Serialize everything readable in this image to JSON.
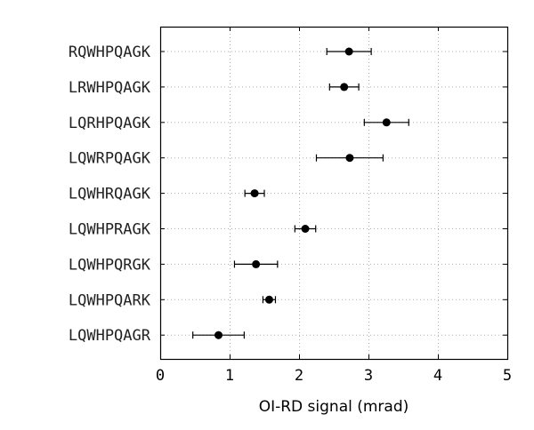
{
  "chart_data": {
    "type": "scatter",
    "orientation": "horizontal",
    "xlabel": "OI-RD signal (mrad)",
    "xlim": [
      0,
      5
    ],
    "xticks": [
      "0",
      "1",
      "2",
      "3",
      "4",
      "5"
    ],
    "grid": true,
    "categories": [
      "RQWHPQAGK",
      "LRWHPQAGK",
      "LQRHPQAGK",
      "LQWRPQAGK",
      "LQWHRQAGK",
      "LQWHPRAGK",
      "LQWHPQRGK",
      "LQWHPQARK",
      "LQWHPQAGR"
    ],
    "values": [
      2.72,
      2.65,
      3.26,
      2.73,
      1.36,
      2.09,
      1.38,
      1.57,
      0.84
    ],
    "errors": [
      0.32,
      0.21,
      0.32,
      0.48,
      0.14,
      0.15,
      0.31,
      0.09,
      0.37
    ]
  }
}
